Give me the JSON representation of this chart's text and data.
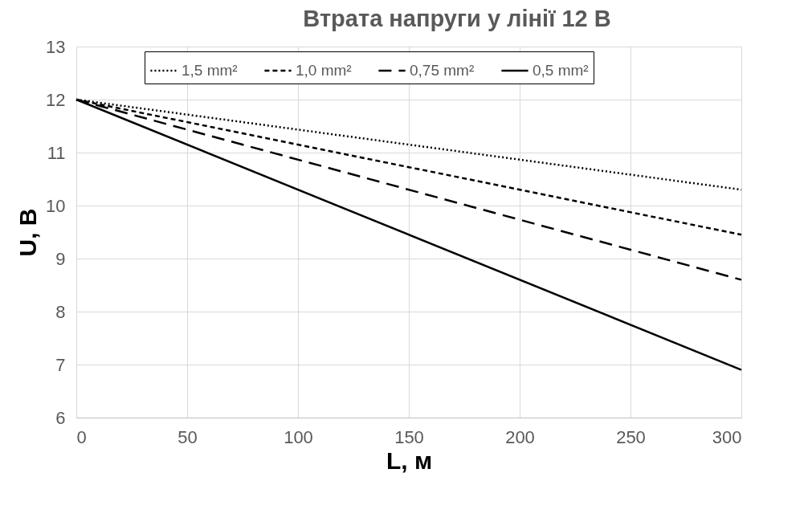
{
  "chart_data": {
    "type": "line",
    "title": "Втрата напруги у лінії 12 В",
    "xlabel": "L, м",
    "ylabel": "U, B",
    "x": [
      0,
      300
    ],
    "series": [
      {
        "name": "1,5 mm²",
        "color": "#000000",
        "line_style": "dotted",
        "values": [
          12,
          10.3
        ]
      },
      {
        "name": "1,0 mm²",
        "color": "#000000",
        "line_style": "dashed",
        "values": [
          12,
          9.45
        ]
      },
      {
        "name": "0,75 mm²",
        "color": "#000000",
        "line_style": "dashed",
        "values": [
          12,
          8.6
        ]
      },
      {
        "name": "0,5 mm²",
        "color": "#000000",
        "line_style": "solid",
        "values": [
          12,
          6.9
        ]
      }
    ],
    "xlim": [
      0,
      300
    ],
    "xticks": [
      0,
      50,
      100,
      150,
      200,
      250,
      300
    ],
    "ylim": [
      6,
      13
    ],
    "yticks": [
      6,
      7,
      8,
      9,
      10,
      11,
      12,
      13
    ],
    "grid": true,
    "legend": "top",
    "marker": "none"
  }
}
